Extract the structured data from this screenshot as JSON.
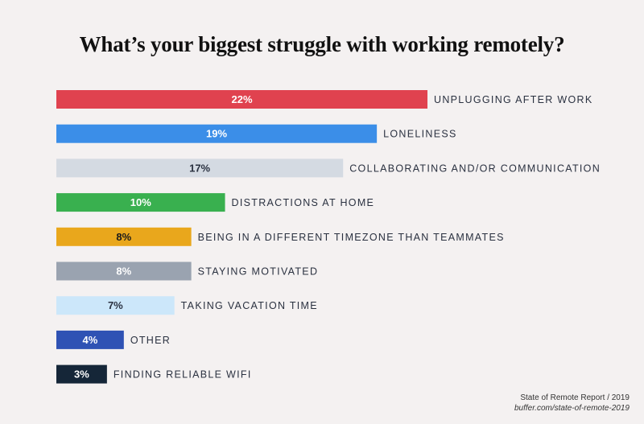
{
  "chart_data": {
    "type": "bar",
    "orientation": "horizontal",
    "title": "What’s your biggest struggle with working remotely?",
    "categories": [
      "UNPLUGGING AFTER WORK",
      "LONELINESS",
      "COLLABORATING AND/OR COMMUNICATION",
      "DISTRACTIONS AT HOME",
      "BEING IN A DIFFERENT TIMEZONE THAN TEAMMATES",
      "STAYING MOTIVATED",
      "TAKING VACATION TIME",
      "OTHER",
      "FINDING RELIABLE WIFI"
    ],
    "values": [
      22,
      19,
      17,
      10,
      8,
      8,
      7,
      4,
      3
    ],
    "value_labels": [
      "22%",
      "19%",
      "17%",
      "10%",
      "8%",
      "8%",
      "7%",
      "4%",
      "3%"
    ],
    "colors": [
      "#e0424f",
      "#3b8ee8",
      "#d4dae2",
      "#39b04f",
      "#e9a71c",
      "#9aa3b0",
      "#cce7fa",
      "#2f52b4",
      "#152638"
    ],
    "label_colors": [
      "#ffffff",
      "#ffffff",
      "#2a3140",
      "#ffffff",
      "#1a1a1a",
      "#ffffff",
      "#2a3140",
      "#ffffff",
      "#ffffff"
    ],
    "xlim": [
      0,
      22
    ],
    "grid": false,
    "legend": "none"
  },
  "source": {
    "line1": "State of Remote Report / 2019",
    "line2": "buffer.com/state-of-remote-2019"
  }
}
